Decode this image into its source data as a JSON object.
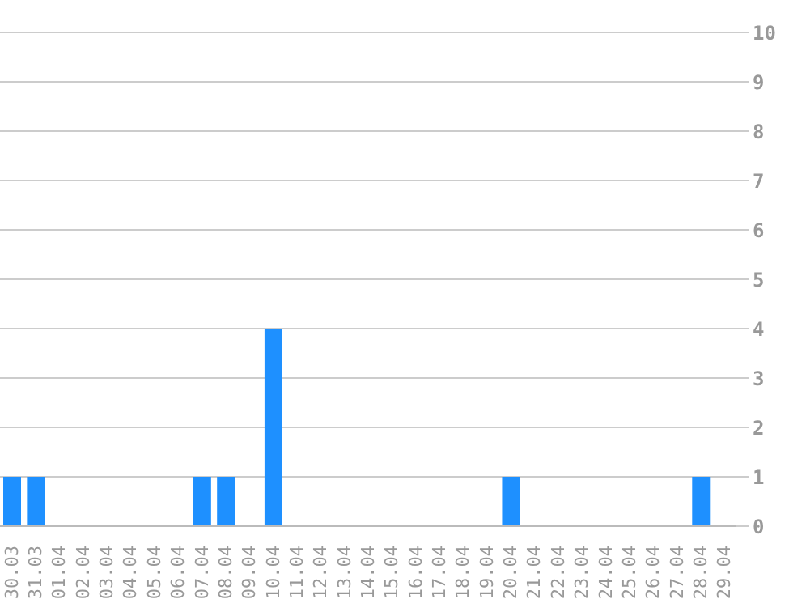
{
  "chart_data": {
    "type": "bar",
    "categories": [
      "30.03",
      "31.03",
      "01.04",
      "02.04",
      "03.04",
      "04.04",
      "05.04",
      "06.04",
      "07.04",
      "08.04",
      "09.04",
      "10.04",
      "11.04",
      "12.04",
      "13.04",
      "14.04",
      "15.04",
      "16.04",
      "17.04",
      "18.04",
      "19.04",
      "20.04",
      "21.04",
      "22.04",
      "23.04",
      "24.04",
      "25.04",
      "26.04",
      "27.04",
      "28.04",
      "29.04"
    ],
    "values": [
      1,
      1,
      0,
      0,
      0,
      0,
      0,
      0,
      1,
      1,
      0,
      4,
      0,
      0,
      0,
      0,
      0,
      0,
      0,
      0,
      0,
      1,
      0,
      0,
      0,
      0,
      0,
      0,
      0,
      1,
      0
    ],
    "color": "#1e90ff",
    "ylim": [
      0,
      10
    ],
    "yticks": [
      0,
      1,
      2,
      3,
      4,
      5,
      6,
      7,
      8,
      9,
      10
    ],
    "grid": "y",
    "legend": false
  }
}
